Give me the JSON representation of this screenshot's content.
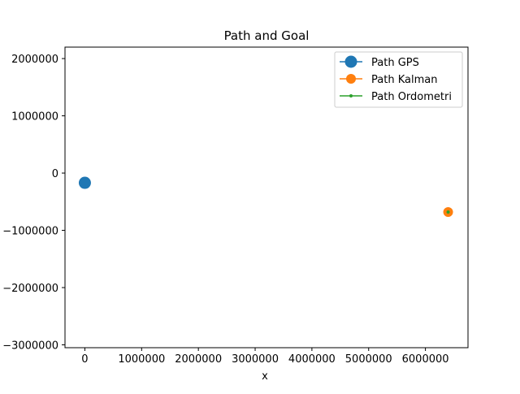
{
  "chart_data": {
    "type": "line",
    "title": "Path and Goal",
    "xlabel": "x",
    "ylabel": "",
    "xlim": [
      -350000,
      6750000
    ],
    "ylim": [
      -3050000,
      2200000
    ],
    "xticks": [
      0,
      1000000,
      2000000,
      3000000,
      4000000,
      5000000,
      6000000
    ],
    "xtick_labels": [
      "0",
      "1000000",
      "2000000",
      "3000000",
      "4000000",
      "5000000",
      "6000000"
    ],
    "yticks": [
      2000000,
      1000000,
      0,
      -1000000,
      -2000000,
      -3000000
    ],
    "ytick_labels": [
      "2000000",
      "1000000",
      "0",
      "−1000000",
      "−2000000",
      "−3000000"
    ],
    "grid": false,
    "legend_position": "upper-right",
    "series": [
      {
        "name": "Path GPS",
        "color": "#1f77b4",
        "marker": "large-circle",
        "x": [
          0
        ],
        "y": [
          -170000
        ]
      },
      {
        "name": "Path Kalman",
        "color": "#ff7f0e",
        "marker": "circle",
        "x": [
          6400000
        ],
        "y": [
          -680000
        ]
      },
      {
        "name": "Path Ordometri",
        "color": "#2ca02c",
        "marker": "point",
        "x": [
          6400000
        ],
        "y": [
          -680000
        ]
      }
    ]
  }
}
